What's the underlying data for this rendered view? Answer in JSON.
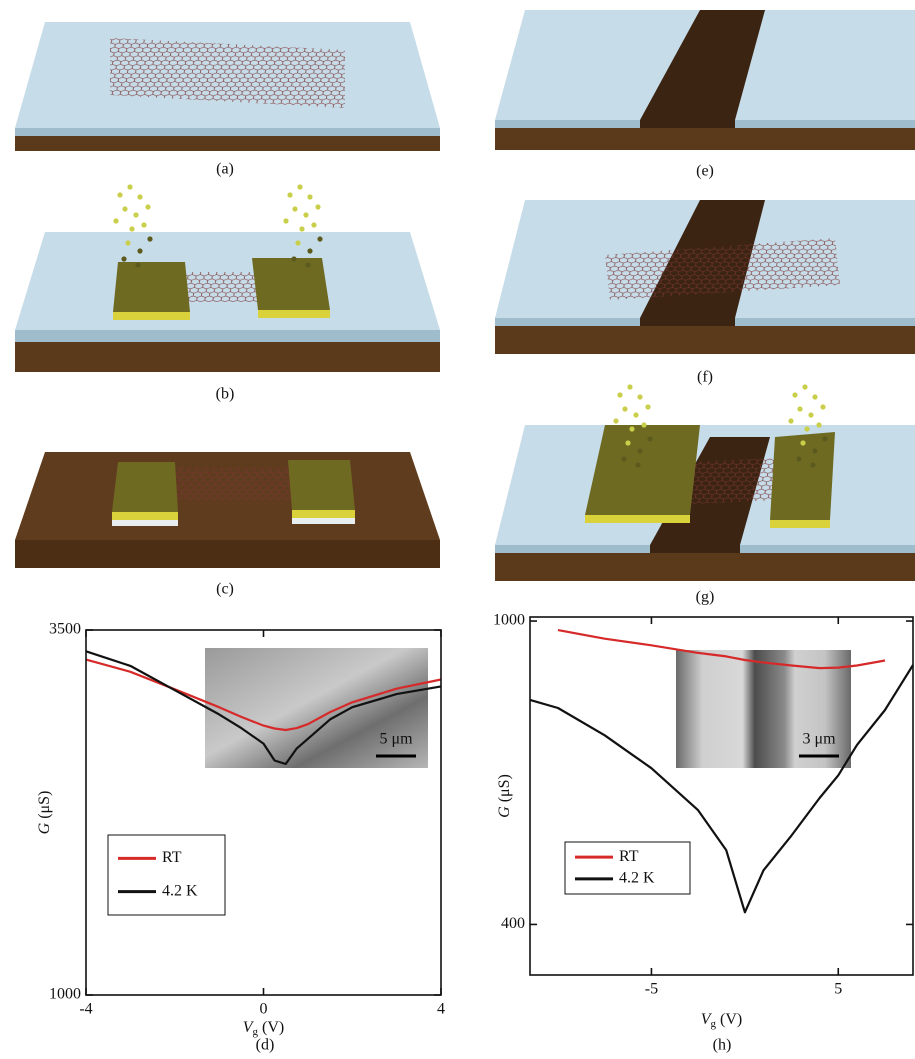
{
  "panels": [
    "(a)",
    "(b)",
    "(c)",
    "(d)",
    "(e)",
    "(f)",
    "(g)",
    "(h)"
  ],
  "chart_data": [
    {
      "type": "line",
      "xlabel": [
        "V",
        "g",
        "(V)"
      ],
      "ylabel": [
        "G",
        "(μS)"
      ],
      "x": [
        -4,
        -3,
        -2,
        -1,
        -0.5,
        0,
        0.25,
        0.5,
        0.75,
        1,
        1.5,
        2,
        3,
        4
      ],
      "series": [
        {
          "name": "RT",
          "color": "#d62a2a",
          "values": [
            3297,
            3214,
            3094,
            2971,
            2905,
            2845,
            2825,
            2815,
            2828,
            2855,
            2938,
            3005,
            3098,
            3161
          ]
        },
        {
          "name": "4.2 K",
          "color": "#111111",
          "values": [
            3354,
            3254,
            3088,
            2922,
            2828,
            2722,
            2606,
            2582,
            2689,
            2755,
            2888,
            2971,
            3061,
            3114
          ]
        }
      ],
      "xlim": [
        -4,
        4
      ],
      "xticks": [
        -4,
        0,
        4
      ],
      "ylim": [
        1000,
        3500
      ],
      "yticks": [
        1000,
        3500
      ],
      "legend": "lower left",
      "inset_scale_bar": "5 μm"
    },
    {
      "type": "line",
      "xlabel": [
        "V",
        "g",
        "(V)"
      ],
      "ylabel": [
        "G",
        "(μS)"
      ],
      "x": [
        -11.5,
        -10,
        -7.5,
        -5,
        -2.5,
        -1,
        0,
        1,
        2.5,
        4,
        5,
        6,
        7.5,
        9
      ],
      "series": [
        {
          "name": "RT",
          "color": "#d62a2a",
          "values": [
            null,
            982,
            965,
            952,
            937,
            930,
            923,
            918,
            912,
            907,
            908,
            912,
            922,
            null
          ]
        },
        {
          "name": "4.2 K",
          "color": "#111111",
          "values": [
            844,
            828,
            774,
            709,
            626,
            547,
            424,
            507,
            576,
            650,
            695,
            755,
            824,
            913
          ]
        }
      ],
      "xlim": [
        -11.5,
        9
      ],
      "xticks": [
        -5,
        5
      ],
      "ylim": [
        300,
        1008
      ],
      "yticks": [
        400,
        1000
      ],
      "legend": "lower left",
      "inset_scale_bar": "3 μm"
    }
  ]
}
